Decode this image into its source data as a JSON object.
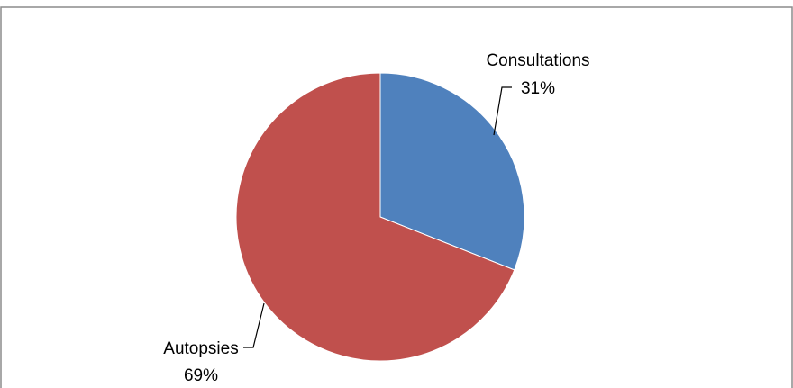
{
  "chart_data": {
    "type": "pie",
    "title": "",
    "labels": [
      "Consultations",
      "Autopsies"
    ],
    "values": [
      31,
      69
    ],
    "percent_labels": [
      "31%",
      "69%"
    ],
    "colors": [
      "#4F81BD",
      "#C0504D"
    ],
    "start_angle": "12 o'clock",
    "direction": "clockwise",
    "legend": "none",
    "data_labels": "outside with leader lines"
  }
}
